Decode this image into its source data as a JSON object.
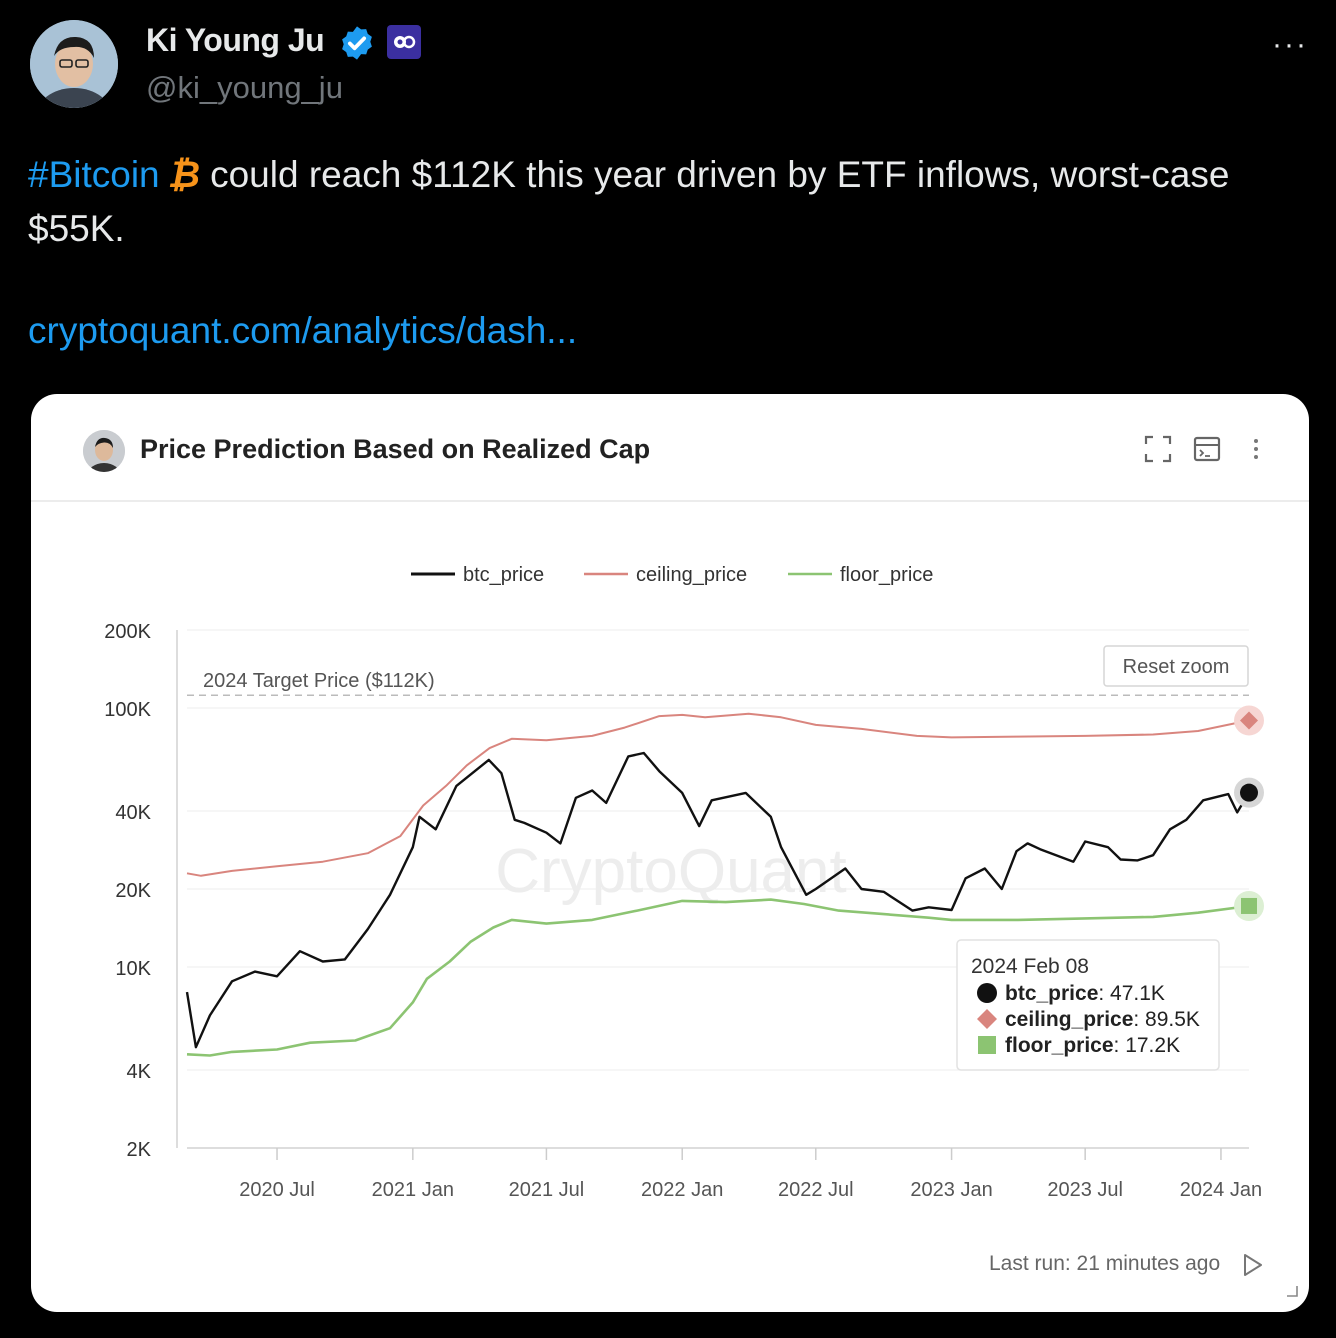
{
  "tweet": {
    "author_name": "Ki Young Ju",
    "handle": "@ki_young_ju",
    "hashtag": "#Bitcoin",
    "hashtag_icon": "bitcoin-icon",
    "text": "could reach $112K this year driven by ETF inflows, worst-case $55K.",
    "link": "cryptoquant.com/analytics/dash..."
  },
  "card": {
    "title": "Price Prediction Based on Realized Cap",
    "icons": [
      "fullscreen-icon",
      "console-icon",
      "more-vertical-icon"
    ],
    "reset_zoom": "Reset zoom",
    "watermark": "CryptoQuant",
    "last_run": "Last run: 21 minutes ago"
  },
  "colors": {
    "btc_price": "#111111",
    "ceiling_price": "#d9857e",
    "floor_price": "#8cc472",
    "link": "#1d9bf0"
  },
  "chart_data": {
    "type": "line",
    "y_scale": "log",
    "ylim": [
      2000,
      200000
    ],
    "y_ticks": [
      2000,
      4000,
      10000,
      20000,
      40000,
      100000,
      200000
    ],
    "y_tick_labels": [
      "2K",
      "4K",
      "10K",
      "20K",
      "40K",
      "100K",
      "200K"
    ],
    "x_range": [
      "2020-03-01",
      "2024-02-08"
    ],
    "x_ticks": [
      "2020-07-01",
      "2021-01-01",
      "2021-07-01",
      "2022-01-01",
      "2022-07-01",
      "2023-01-01",
      "2023-07-01",
      "2024-01-01"
    ],
    "x_tick_labels": [
      "2020 Jul",
      "2021 Jan",
      "2021 Jul",
      "2022 Jan",
      "2022 Jul",
      "2023 Jan",
      "2023 Jul",
      "2024 Jan"
    ],
    "legend": [
      "btc_price",
      "ceiling_price",
      "floor_price"
    ],
    "legend_position": "top-center",
    "grid": true,
    "reference_line": {
      "y": 112000,
      "label": "2024 Target Price ($112K)"
    },
    "series": [
      {
        "name": "btc_price",
        "points": [
          [
            "2020-03-01",
            8000
          ],
          [
            "2020-03-13",
            4900
          ],
          [
            "2020-04-01",
            6500
          ],
          [
            "2020-05-01",
            8800
          ],
          [
            "2020-06-01",
            9600
          ],
          [
            "2020-07-01",
            9200
          ],
          [
            "2020-08-01",
            11500
          ],
          [
            "2020-09-01",
            10500
          ],
          [
            "2020-10-01",
            10700
          ],
          [
            "2020-11-01",
            14000
          ],
          [
            "2020-12-01",
            19000
          ],
          [
            "2021-01-01",
            29000
          ],
          [
            "2021-01-10",
            38000
          ],
          [
            "2021-02-01",
            34000
          ],
          [
            "2021-03-01",
            50000
          ],
          [
            "2021-04-14",
            63000
          ],
          [
            "2021-05-01",
            56000
          ],
          [
            "2021-05-19",
            37000
          ],
          [
            "2021-06-01",
            36000
          ],
          [
            "2021-07-01",
            33000
          ],
          [
            "2021-07-20",
            30000
          ],
          [
            "2021-08-10",
            45000
          ],
          [
            "2021-09-01",
            48000
          ],
          [
            "2021-09-20",
            43000
          ],
          [
            "2021-10-20",
            65000
          ],
          [
            "2021-11-10",
            67000
          ],
          [
            "2021-12-01",
            57000
          ],
          [
            "2022-01-01",
            47000
          ],
          [
            "2022-01-24",
            35000
          ],
          [
            "2022-02-10",
            44000
          ],
          [
            "2022-03-28",
            47000
          ],
          [
            "2022-05-01",
            38000
          ],
          [
            "2022-05-15",
            29000
          ],
          [
            "2022-06-18",
            19000
          ],
          [
            "2022-07-01",
            20000
          ],
          [
            "2022-08-10",
            24000
          ],
          [
            "2022-09-01",
            20000
          ],
          [
            "2022-10-01",
            19500
          ],
          [
            "2022-11-09",
            16500
          ],
          [
            "2022-12-01",
            17000
          ],
          [
            "2023-01-01",
            16600
          ],
          [
            "2023-01-20",
            22000
          ],
          [
            "2023-02-15",
            24000
          ],
          [
            "2023-03-10",
            20000
          ],
          [
            "2023-03-30",
            28000
          ],
          [
            "2023-04-14",
            30000
          ],
          [
            "2023-05-01",
            28500
          ],
          [
            "2023-06-15",
            25500
          ],
          [
            "2023-07-01",
            30500
          ],
          [
            "2023-08-01",
            29000
          ],
          [
            "2023-08-18",
            26000
          ],
          [
            "2023-09-10",
            25800
          ],
          [
            "2023-10-01",
            27000
          ],
          [
            "2023-10-24",
            34000
          ],
          [
            "2023-11-15",
            37000
          ],
          [
            "2023-12-08",
            44000
          ],
          [
            "2024-01-11",
            46500
          ],
          [
            "2024-01-23",
            39500
          ],
          [
            "2024-02-08",
            47100
          ]
        ]
      },
      {
        "name": "ceiling_price",
        "points": [
          [
            "2020-03-01",
            23000
          ],
          [
            "2020-03-20",
            22500
          ],
          [
            "2020-05-01",
            23500
          ],
          [
            "2020-07-01",
            24500
          ],
          [
            "2020-09-01",
            25500
          ],
          [
            "2020-11-01",
            27500
          ],
          [
            "2020-12-15",
            32000
          ],
          [
            "2021-01-15",
            42000
          ],
          [
            "2021-02-15",
            50000
          ],
          [
            "2021-03-15",
            60000
          ],
          [
            "2021-04-15",
            70000
          ],
          [
            "2021-05-15",
            76000
          ],
          [
            "2021-07-01",
            75000
          ],
          [
            "2021-09-01",
            78000
          ],
          [
            "2021-10-15",
            84000
          ],
          [
            "2021-12-01",
            93000
          ],
          [
            "2022-01-01",
            94000
          ],
          [
            "2022-02-01",
            92000
          ],
          [
            "2022-04-01",
            95000
          ],
          [
            "2022-05-15",
            92000
          ],
          [
            "2022-07-01",
            86000
          ],
          [
            "2022-09-01",
            83000
          ],
          [
            "2022-11-15",
            78000
          ],
          [
            "2023-01-01",
            77000
          ],
          [
            "2023-04-01",
            77500
          ],
          [
            "2023-07-01",
            78000
          ],
          [
            "2023-10-01",
            79000
          ],
          [
            "2023-12-01",
            81500
          ],
          [
            "2024-02-08",
            89500
          ]
        ]
      },
      {
        "name": "floor_price",
        "points": [
          [
            "2020-03-01",
            4600
          ],
          [
            "2020-04-01",
            4550
          ],
          [
            "2020-05-01",
            4700
          ],
          [
            "2020-07-01",
            4800
          ],
          [
            "2020-08-15",
            5100
          ],
          [
            "2020-10-15",
            5200
          ],
          [
            "2020-12-01",
            5800
          ],
          [
            "2021-01-01",
            7300
          ],
          [
            "2021-01-20",
            9000
          ],
          [
            "2021-02-20",
            10500
          ],
          [
            "2021-03-20",
            12500
          ],
          [
            "2021-04-20",
            14200
          ],
          [
            "2021-05-15",
            15200
          ],
          [
            "2021-07-01",
            14700
          ],
          [
            "2021-09-01",
            15200
          ],
          [
            "2021-11-01",
            16500
          ],
          [
            "2022-01-01",
            18000
          ],
          [
            "2022-03-01",
            17800
          ],
          [
            "2022-05-01",
            18200
          ],
          [
            "2022-06-15",
            17500
          ],
          [
            "2022-08-01",
            16500
          ],
          [
            "2022-10-01",
            16000
          ],
          [
            "2022-12-01",
            15500
          ],
          [
            "2023-01-01",
            15200
          ],
          [
            "2023-04-01",
            15200
          ],
          [
            "2023-07-01",
            15400
          ],
          [
            "2023-10-01",
            15600
          ],
          [
            "2023-12-01",
            16200
          ],
          [
            "2024-02-08",
            17200
          ]
        ]
      }
    ],
    "tooltip": {
      "date": "2024 Feb 08",
      "items": [
        {
          "name": "btc_price",
          "value": "47.1K",
          "marker": "circle"
        },
        {
          "name": "ceiling_price",
          "value": "89.5K",
          "marker": "diamond"
        },
        {
          "name": "floor_price",
          "value": "17.2K",
          "marker": "square"
        }
      ]
    }
  }
}
